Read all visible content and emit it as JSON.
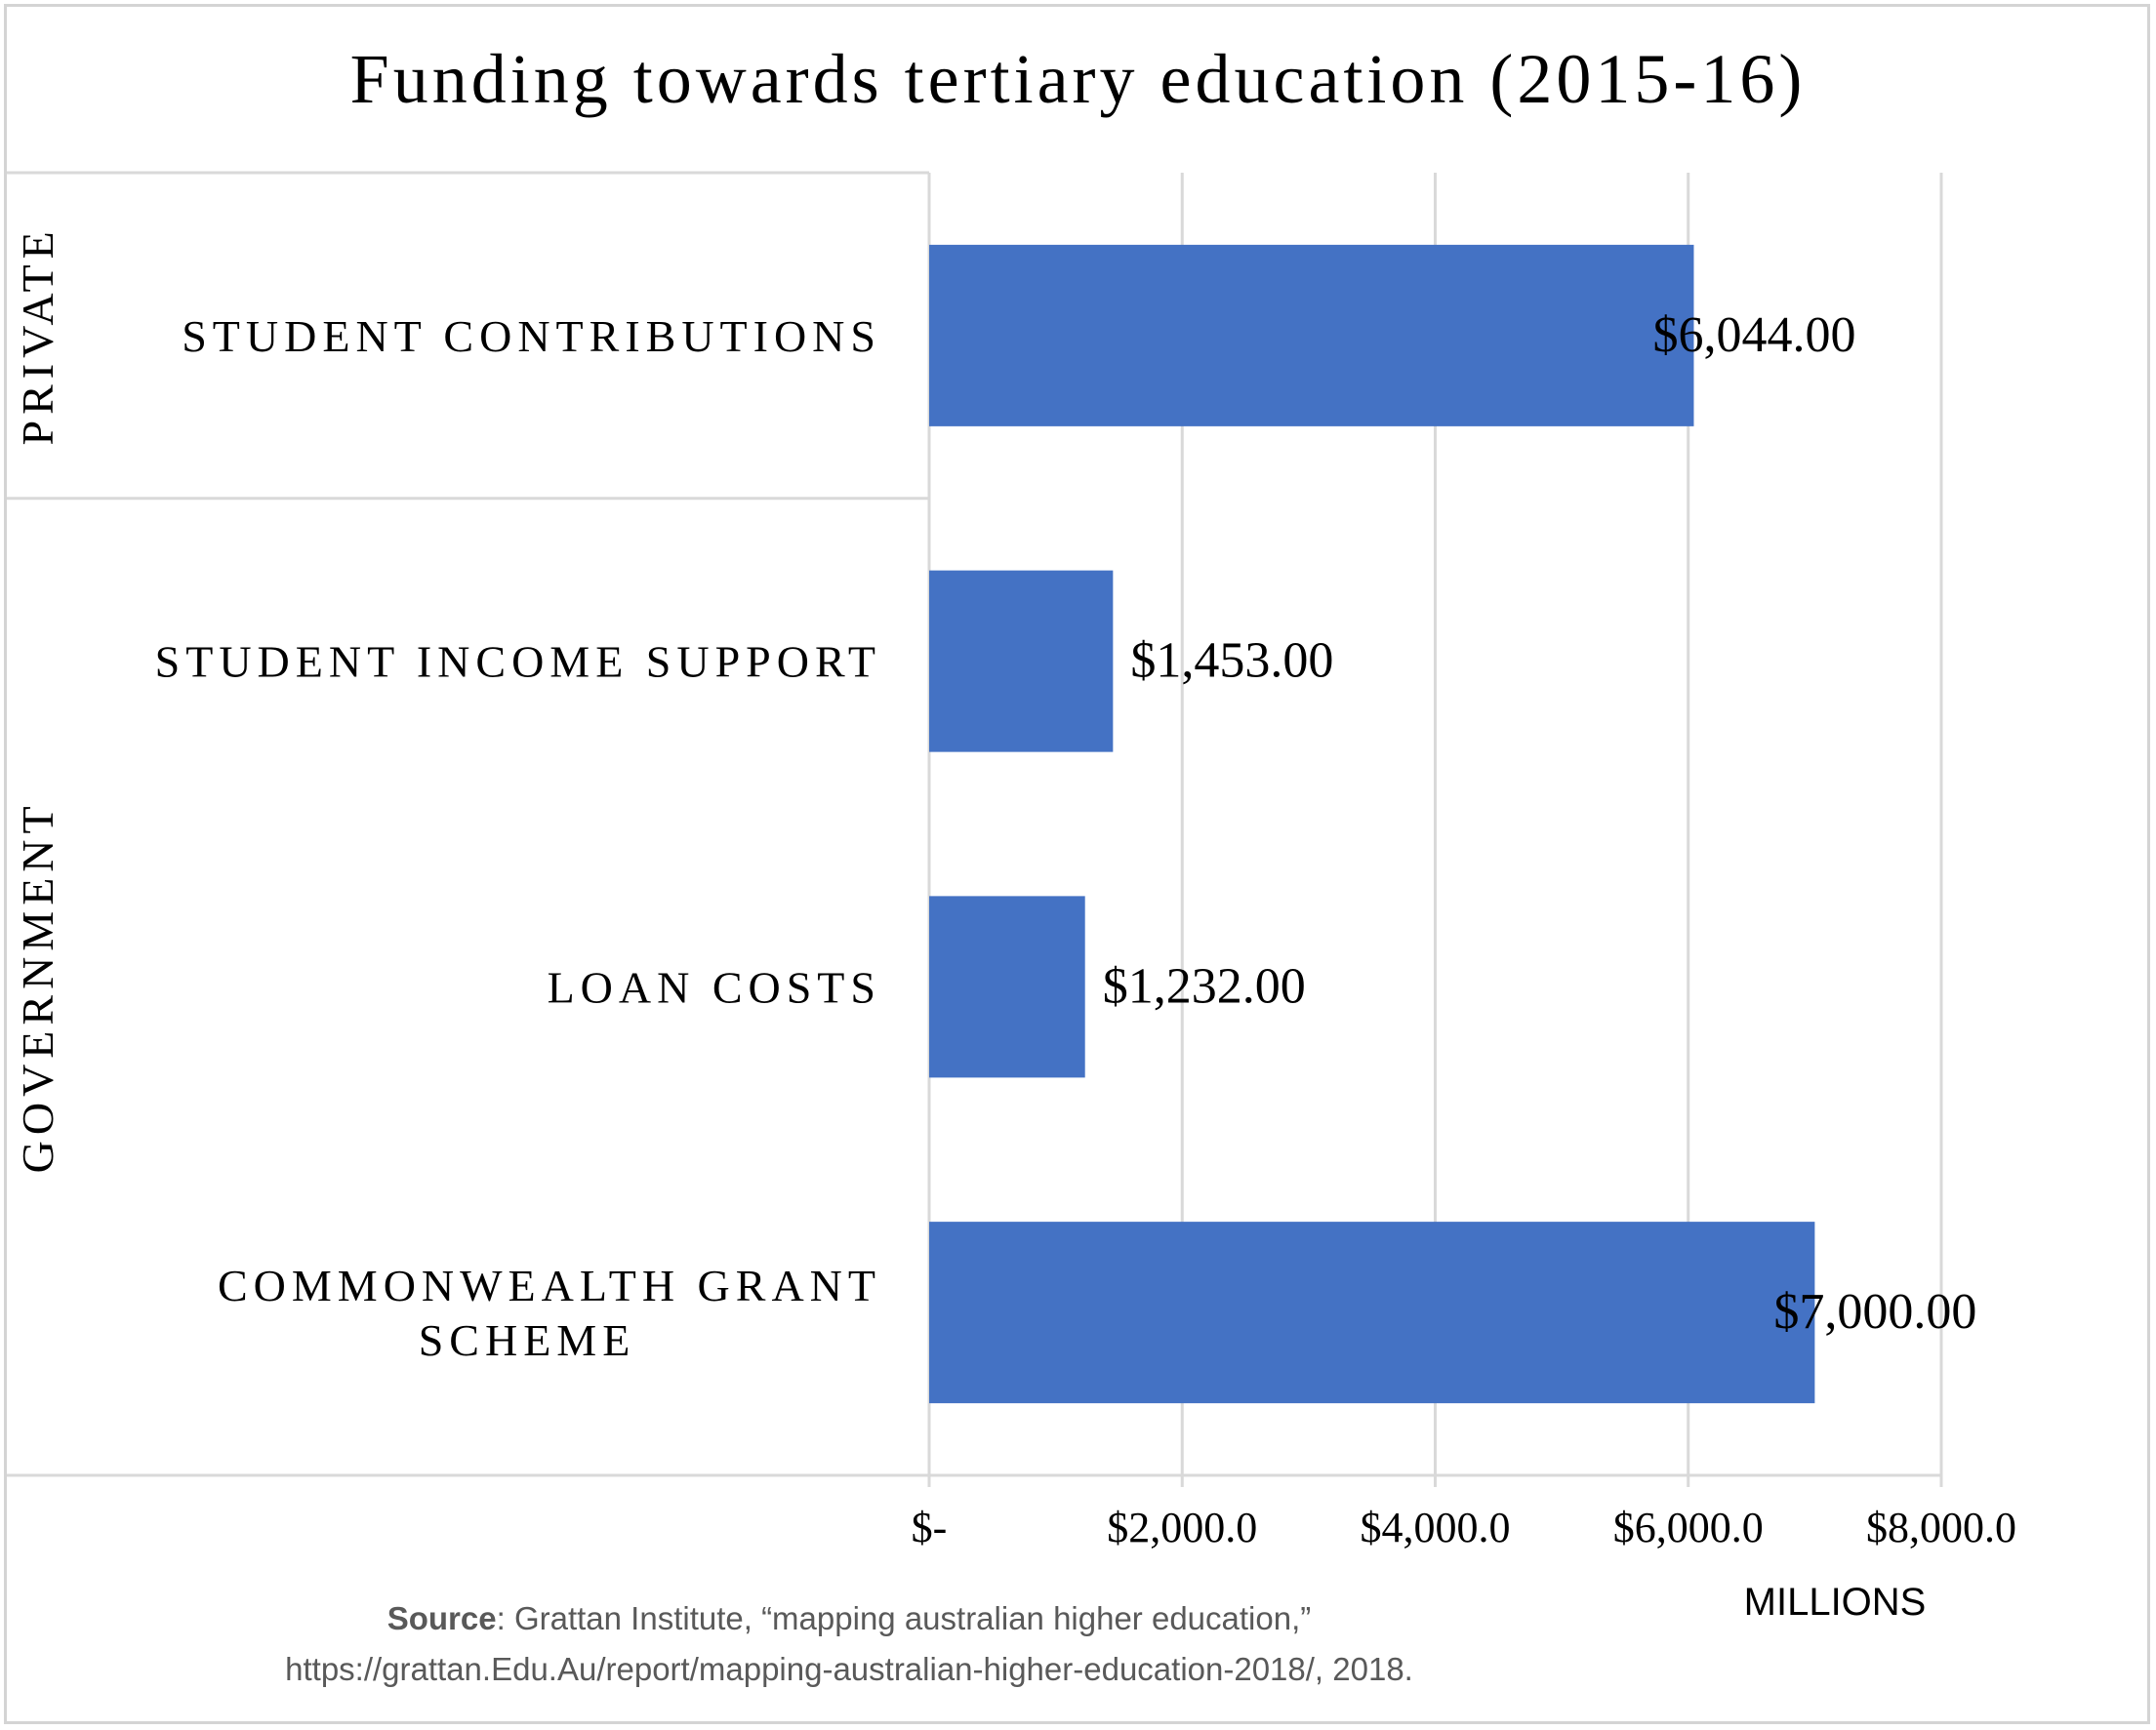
{
  "chart_data": {
    "type": "bar",
    "orientation": "horizontal",
    "title": "Funding towards tertiary education (2015-16)",
    "groups": [
      {
        "name": "PRIVATE",
        "categories": [
          "STUDENT CONTRIBUTIONS"
        ]
      },
      {
        "name": "GOVERNMENT",
        "categories": [
          "STUDENT INCOME SUPPORT",
          "LOAN COSTS",
          "COMMONWEALTH GRANT SCHEME"
        ]
      }
    ],
    "categories": [
      "STUDENT CONTRIBUTIONS",
      "STUDENT INCOME SUPPORT",
      "LOAN COSTS",
      "COMMONWEALTH GRANT SCHEME"
    ],
    "values": [
      6044,
      1453,
      1232,
      7000
    ],
    "data_labels": [
      "$6,044.00",
      "$1,453.00",
      "$1,232.00",
      "$7,000.00"
    ],
    "xlim": [
      0,
      8000
    ],
    "x_ticks": [
      0,
      2000,
      4000,
      6000,
      8000
    ],
    "x_tick_labels": [
      "$-",
      "$2,000.0",
      "$4,000.0",
      "$6,000.0",
      "$8,000.0"
    ],
    "xlabel": "MILLIONS",
    "ylabel": "",
    "grid": "vertical",
    "bar_color": "#4472c4",
    "grid_color": "#d9d9d9"
  },
  "source": {
    "label": "Source",
    "text": ": Grattan Institute, “mapping australian higher education,”",
    "url_line": "https://grattan.Edu.Au/report/mapping-australian-higher-education-2018/, 2018."
  }
}
